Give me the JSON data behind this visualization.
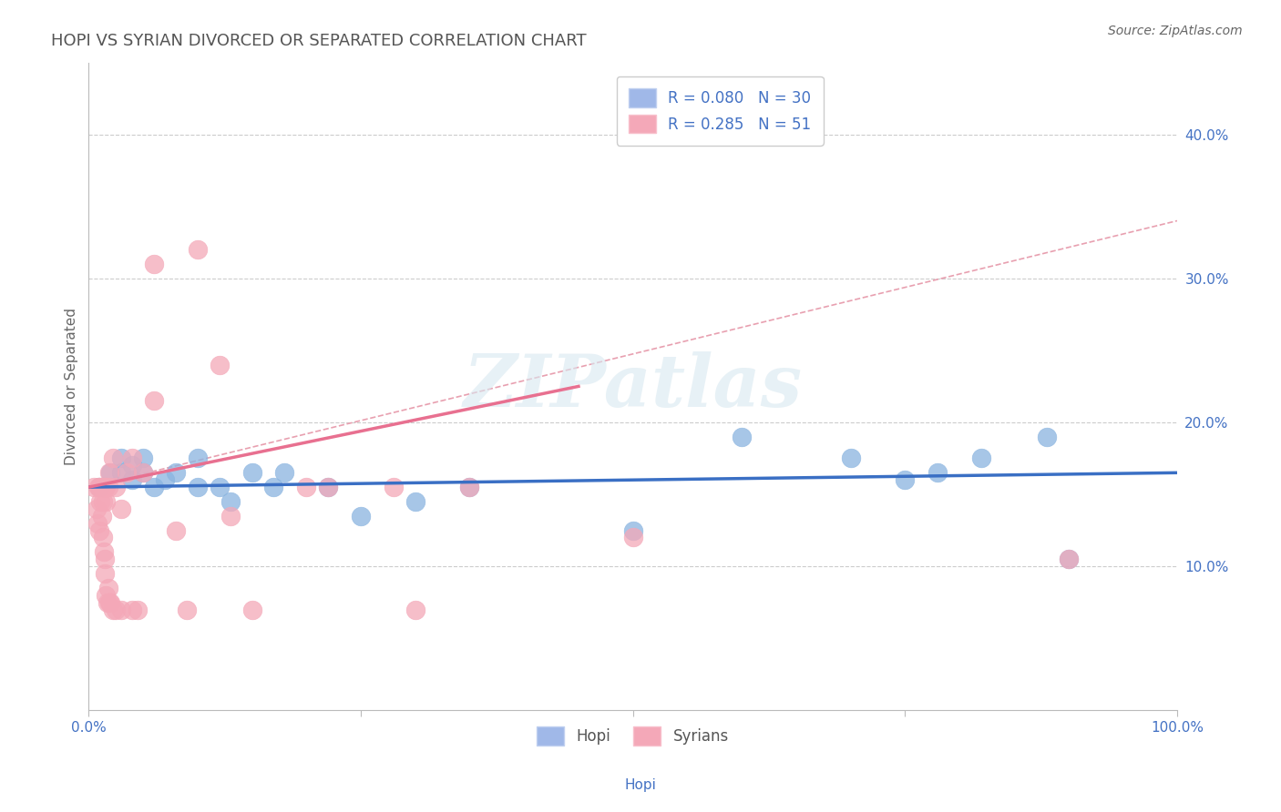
{
  "title": "HOPI VS SYRIAN DIVORCED OR SEPARATED CORRELATION CHART",
  "source": "Source: ZipAtlas.com",
  "xlabel": "Hopi",
  "ylabel": "Divorced or Separated",
  "xlim": [
    0,
    1.0
  ],
  "ylim": [
    0.0,
    0.45
  ],
  "xtick_vals": [
    0.0,
    0.25,
    0.5,
    0.75,
    1.0
  ],
  "xtick_labels": [
    "0.0%",
    "",
    "",
    "",
    "100.0%"
  ],
  "ytick_vals": [
    0.1,
    0.2,
    0.3,
    0.4
  ],
  "ytick_labels": [
    "10.0%",
    "20.0%",
    "30.0%",
    "40.0%"
  ],
  "hopi_color": "#8ab4e0",
  "syrian_color": "#f4a8b8",
  "hopi_R": 0.08,
  "hopi_N": 30,
  "syrian_R": 0.285,
  "syrian_N": 51,
  "background_color": "#ffffff",
  "grid_color": "#cccccc",
  "tick_color": "#4472c4",
  "hopi_scatter": [
    [
      0.01,
      0.155
    ],
    [
      0.02,
      0.165
    ],
    [
      0.03,
      0.175
    ],
    [
      0.03,
      0.165
    ],
    [
      0.04,
      0.17
    ],
    [
      0.04,
      0.16
    ],
    [
      0.05,
      0.175
    ],
    [
      0.05,
      0.165
    ],
    [
      0.06,
      0.155
    ],
    [
      0.07,
      0.16
    ],
    [
      0.08,
      0.165
    ],
    [
      0.1,
      0.155
    ],
    [
      0.1,
      0.175
    ],
    [
      0.12,
      0.155
    ],
    [
      0.13,
      0.145
    ],
    [
      0.15,
      0.165
    ],
    [
      0.17,
      0.155
    ],
    [
      0.18,
      0.165
    ],
    [
      0.22,
      0.155
    ],
    [
      0.25,
      0.135
    ],
    [
      0.3,
      0.145
    ],
    [
      0.35,
      0.155
    ],
    [
      0.5,
      0.125
    ],
    [
      0.6,
      0.19
    ],
    [
      0.7,
      0.175
    ],
    [
      0.75,
      0.16
    ],
    [
      0.78,
      0.165
    ],
    [
      0.82,
      0.175
    ],
    [
      0.88,
      0.19
    ],
    [
      0.9,
      0.105
    ]
  ],
  "syrian_scatter": [
    [
      0.005,
      0.155
    ],
    [
      0.007,
      0.14
    ],
    [
      0.008,
      0.13
    ],
    [
      0.009,
      0.155
    ],
    [
      0.01,
      0.155
    ],
    [
      0.01,
      0.125
    ],
    [
      0.011,
      0.145
    ],
    [
      0.012,
      0.155
    ],
    [
      0.012,
      0.135
    ],
    [
      0.013,
      0.145
    ],
    [
      0.013,
      0.12
    ],
    [
      0.014,
      0.155
    ],
    [
      0.014,
      0.11
    ],
    [
      0.015,
      0.155
    ],
    [
      0.015,
      0.105
    ],
    [
      0.015,
      0.095
    ],
    [
      0.016,
      0.155
    ],
    [
      0.016,
      0.145
    ],
    [
      0.016,
      0.08
    ],
    [
      0.017,
      0.075
    ],
    [
      0.018,
      0.155
    ],
    [
      0.018,
      0.085
    ],
    [
      0.019,
      0.165
    ],
    [
      0.019,
      0.075
    ],
    [
      0.02,
      0.075
    ],
    [
      0.022,
      0.175
    ],
    [
      0.022,
      0.07
    ],
    [
      0.025,
      0.155
    ],
    [
      0.025,
      0.07
    ],
    [
      0.03,
      0.14
    ],
    [
      0.03,
      0.07
    ],
    [
      0.035,
      0.165
    ],
    [
      0.04,
      0.175
    ],
    [
      0.04,
      0.07
    ],
    [
      0.045,
      0.07
    ],
    [
      0.05,
      0.165
    ],
    [
      0.06,
      0.215
    ],
    [
      0.06,
      0.31
    ],
    [
      0.08,
      0.125
    ],
    [
      0.09,
      0.07
    ],
    [
      0.1,
      0.32
    ],
    [
      0.12,
      0.24
    ],
    [
      0.13,
      0.135
    ],
    [
      0.15,
      0.07
    ],
    [
      0.2,
      0.155
    ],
    [
      0.22,
      0.155
    ],
    [
      0.28,
      0.155
    ],
    [
      0.3,
      0.07
    ],
    [
      0.35,
      0.155
    ],
    [
      0.5,
      0.12
    ],
    [
      0.9,
      0.105
    ]
  ],
  "hopi_line_x": [
    0.0,
    1.0
  ],
  "hopi_line_y": [
    0.155,
    0.165
  ],
  "syrian_line_x": [
    0.0,
    0.45
  ],
  "syrian_line_y": [
    0.155,
    0.225
  ],
  "dashed_line_x": [
    0.0,
    1.0
  ],
  "dashed_line_y": [
    0.155,
    0.34
  ],
  "watermark_text": "ZIPatlas",
  "title_fontsize": 13,
  "axis_label_fontsize": 11,
  "tick_fontsize": 11,
  "legend_fontsize": 12
}
